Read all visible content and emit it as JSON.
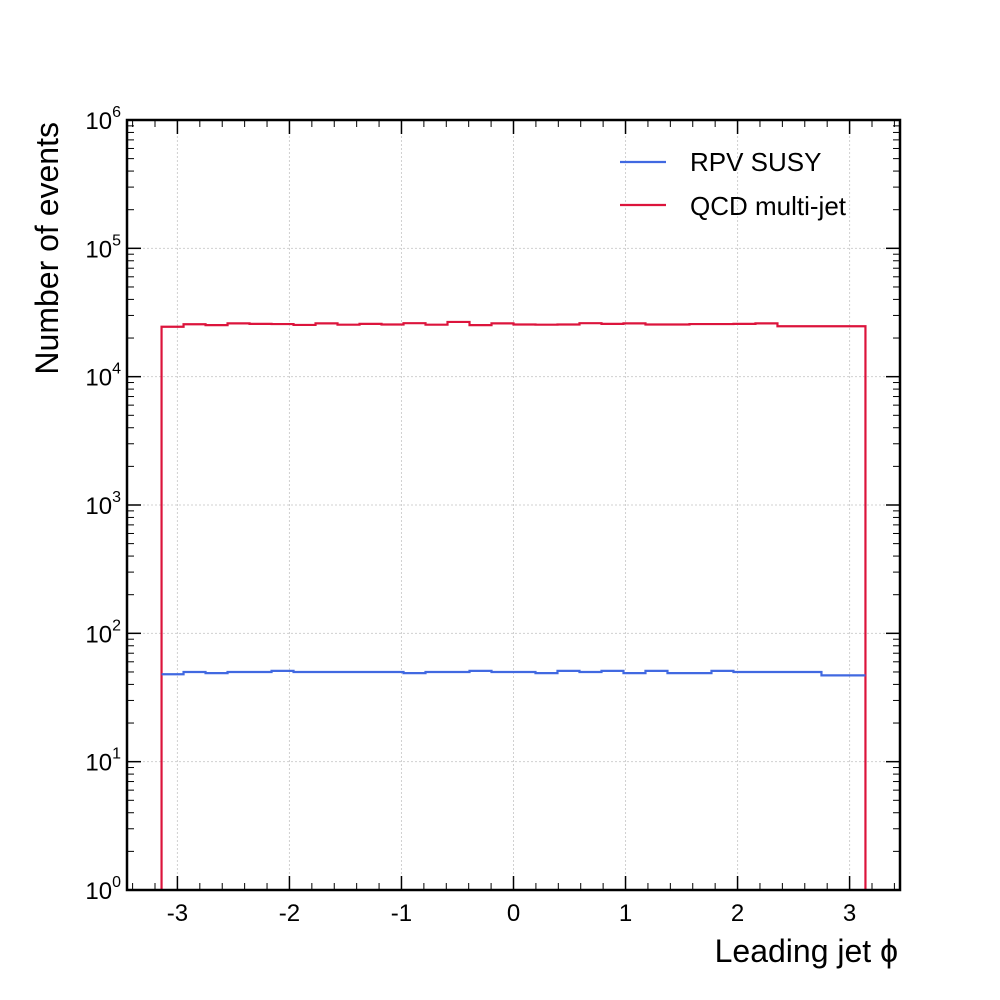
{
  "chart_data": {
    "type": "step",
    "xlabel": "Leading jet ϕ",
    "ylabel": "Number of events",
    "xlim": [
      -3.45,
      3.45
    ],
    "ylim": [
      1,
      1000000
    ],
    "y_scale": "log",
    "grid": true,
    "legend_position": "top-right",
    "x_ticks": [
      "-3",
      "-2",
      "-1",
      "0",
      "1",
      "2",
      "3"
    ],
    "y_ticks": [
      {
        "base": "10",
        "exp": "0"
      },
      {
        "base": "10",
        "exp": "1"
      },
      {
        "base": "10",
        "exp": "2"
      },
      {
        "base": "10",
        "exp": "3"
      },
      {
        "base": "10",
        "exp": "4"
      },
      {
        "base": "10",
        "exp": "5"
      },
      {
        "base": "10",
        "exp": "6"
      }
    ],
    "bin_edges": [
      -3.1416,
      -2.9452,
      -2.7489,
      -2.5525,
      -2.3562,
      -2.1598,
      -1.9635,
      -1.7671,
      -1.5708,
      -1.3744,
      -1.1781,
      -0.9817,
      -0.7854,
      -0.589,
      -0.3927,
      -0.1963,
      0.0,
      0.1963,
      0.3927,
      0.589,
      0.7854,
      0.9817,
      1.1781,
      1.3744,
      1.5708,
      1.7671,
      1.9635,
      2.1598,
      2.3562,
      2.5525,
      2.7489,
      2.9452,
      3.1416
    ],
    "series": [
      {
        "name": "RPV SUSY",
        "color": "#4169e1",
        "values": [
          48,
          50,
          49,
          50,
          50,
          51,
          50,
          50,
          50,
          50,
          50,
          49,
          50,
          50,
          51,
          50,
          50,
          49,
          51,
          50,
          51,
          49,
          51,
          49,
          49,
          51,
          50,
          50,
          50,
          50,
          47,
          47
        ]
      },
      {
        "name": "QCD multi-jet",
        "color": "#dc143c",
        "values": [
          24500,
          25600,
          25200,
          26000,
          25800,
          25700,
          25300,
          26000,
          25400,
          25800,
          25500,
          26100,
          25400,
          26700,
          25200,
          26000,
          25500,
          25400,
          25500,
          26100,
          25800,
          26000,
          25500,
          25500,
          25700,
          25700,
          25800,
          26000,
          24700,
          24700,
          24700,
          24700
        ]
      }
    ]
  }
}
